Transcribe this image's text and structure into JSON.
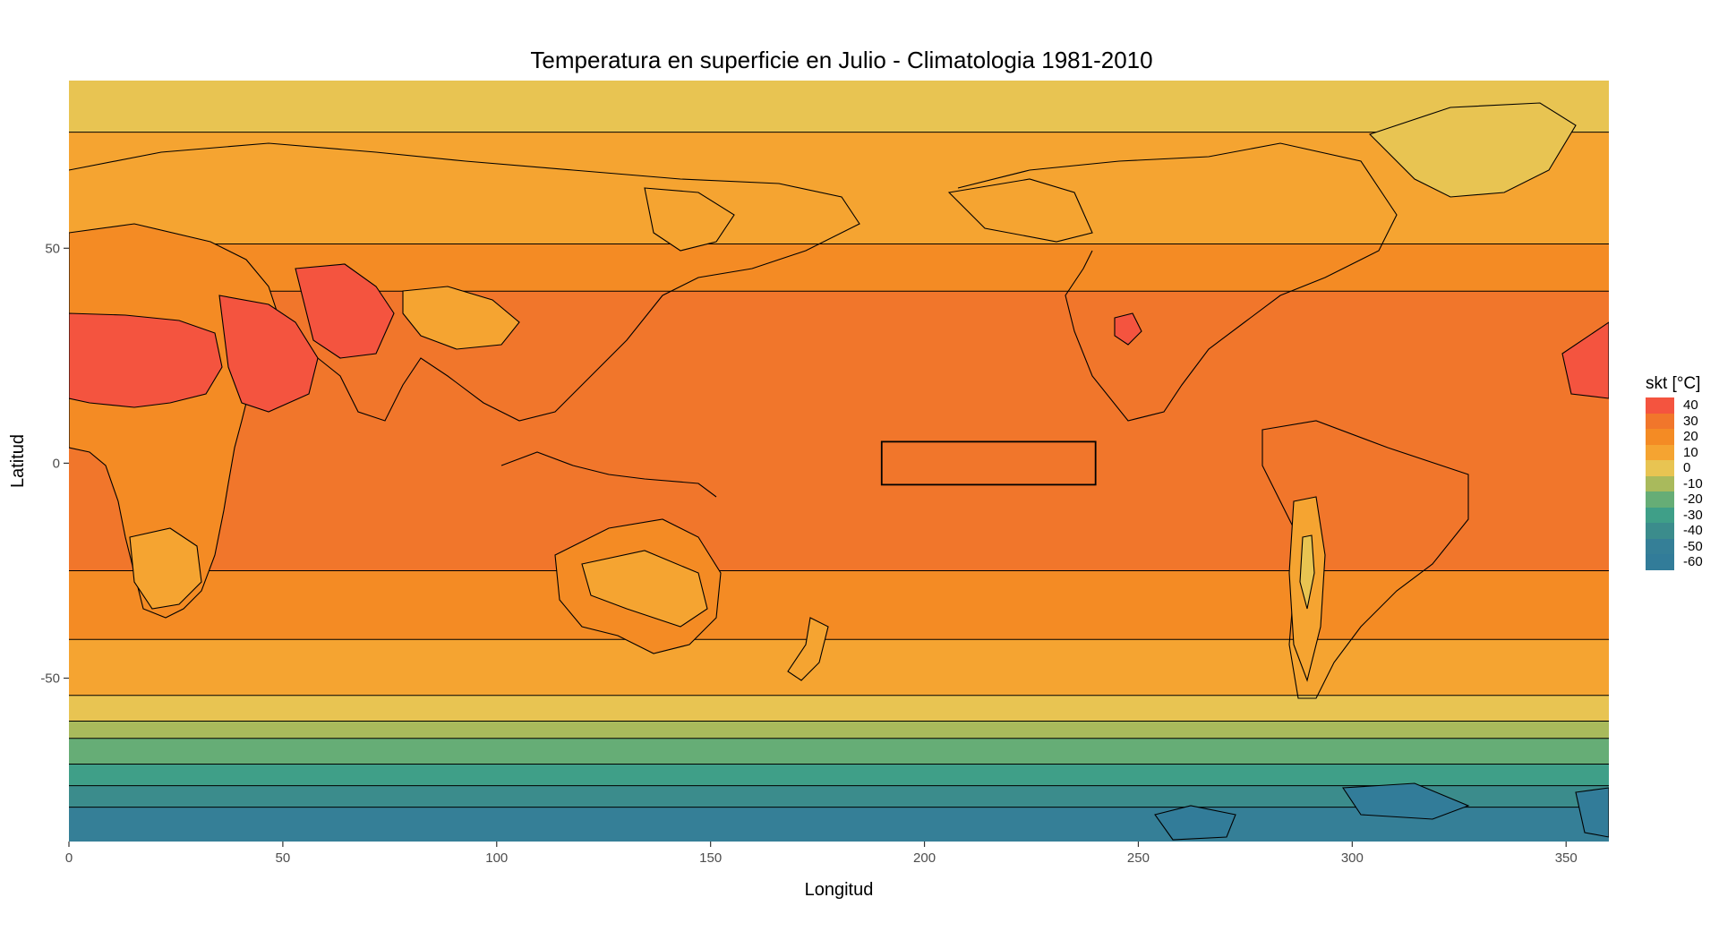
{
  "title": "Temperatura en superficie en Julio - Climatologia 1981-2010",
  "xlabel": "Longitud",
  "ylabel": "Latitud",
  "x_ticks": [
    "0",
    "50",
    "100",
    "150",
    "200",
    "250",
    "300",
    "350"
  ],
  "x_tick_values": [
    0,
    50,
    100,
    150,
    200,
    250,
    300,
    350
  ],
  "y_ticks": [
    "50",
    "0",
    "-50"
  ],
  "y_tick_values": [
    50,
    0,
    -50
  ],
  "xlim": [
    0,
    360
  ],
  "ylim": [
    -88,
    89
  ],
  "legend": {
    "title": "skt [°C]",
    "labels": [
      "40",
      "30",
      "20",
      "10",
      "0",
      "-10",
      "-20",
      "-30",
      "-40",
      "-50",
      "-60"
    ],
    "colors": [
      "#f4543f",
      "#f1762b",
      "#f48b24",
      "#f5a431",
      "#e8c452",
      "#a9ba5c",
      "#66ad76",
      "#3f9f88",
      "#3b8c8c",
      "#357f97",
      "#327c99"
    ]
  },
  "region_box": {
    "lon": [
      190,
      240
    ],
    "lat": [
      -5,
      5
    ]
  },
  "chart_data": {
    "type": "heatmap",
    "title": "Temperatura en superficie en Julio - Climatologia 1981-2010",
    "xlabel": "Longitud",
    "ylabel": "Latitud",
    "xlim": [
      0,
      360
    ],
    "ylim": [
      -88,
      89
    ],
    "legend_position": "right",
    "grid": false,
    "zonal_bands": [
      {
        "lat_from": 89,
        "lat_to": 77,
        "value": 0
      },
      {
        "lat_from": 77,
        "lat_to": 51,
        "value": 10
      },
      {
        "lat_from": 51,
        "lat_to": 40,
        "value": 20
      },
      {
        "lat_from": 40,
        "lat_to": -25,
        "value": 30
      },
      {
        "lat_from": -25,
        "lat_to": -41,
        "value": 20
      },
      {
        "lat_from": -41,
        "lat_to": -54,
        "value": 10
      },
      {
        "lat_from": -54,
        "lat_to": -60,
        "value": 0
      },
      {
        "lat_from": -60,
        "lat_to": -64,
        "value": -10
      },
      {
        "lat_from": -64,
        "lat_to": -70,
        "value": -20
      },
      {
        "lat_from": -70,
        "lat_to": -75,
        "value": -30
      },
      {
        "lat_from": -75,
        "lat_to": -80,
        "value": -40
      },
      {
        "lat_from": -80,
        "lat_to": -88,
        "value": -50
      }
    ]
  }
}
